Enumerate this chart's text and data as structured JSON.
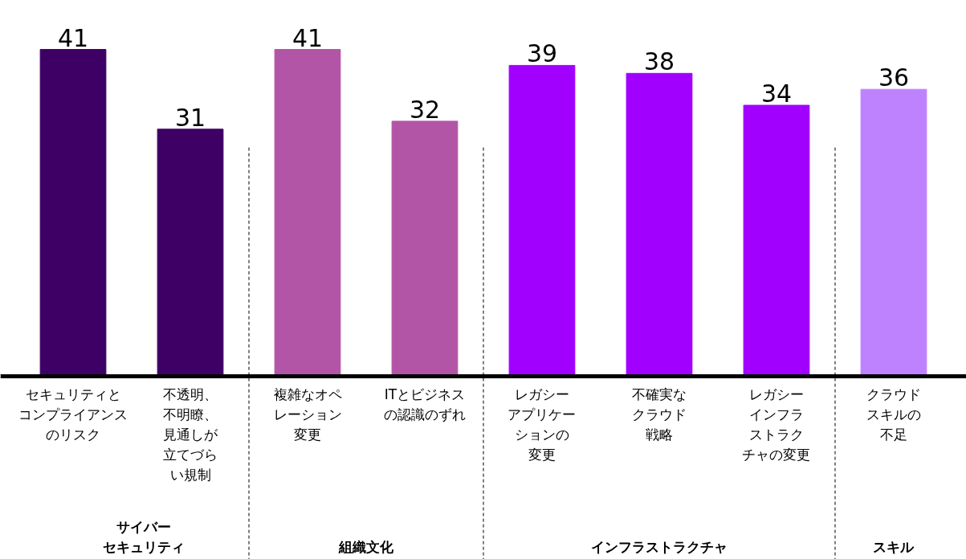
{
  "chart_data": {
    "type": "bar",
    "categories": [
      "セキュリティとコンプライアンスのリスク",
      "不透明、不明瞭、見通しが立てづらい規制",
      "複雑なオペレーション変更",
      "ITとビジネスの認識のずれ",
      "レガシーアプリケーションの変更",
      "不確実なクラウド戦略",
      "レガシーインフラストラクチャの変更",
      "クラウドスキルの不足"
    ],
    "values": [
      41,
      31,
      41,
      32,
      39,
      38,
      34,
      36
    ],
    "colors": [
      "#3f0066",
      "#3f0066",
      "#b255a6",
      "#b255a6",
      "#a100ff",
      "#a100ff",
      "#a100ff",
      "#be82ff"
    ],
    "data_labels": true,
    "annotations": [
      "サイバーセキュリティ",
      "組織文化",
      "インフラストラクチャ",
      "スキル"
    ]
  }
}
